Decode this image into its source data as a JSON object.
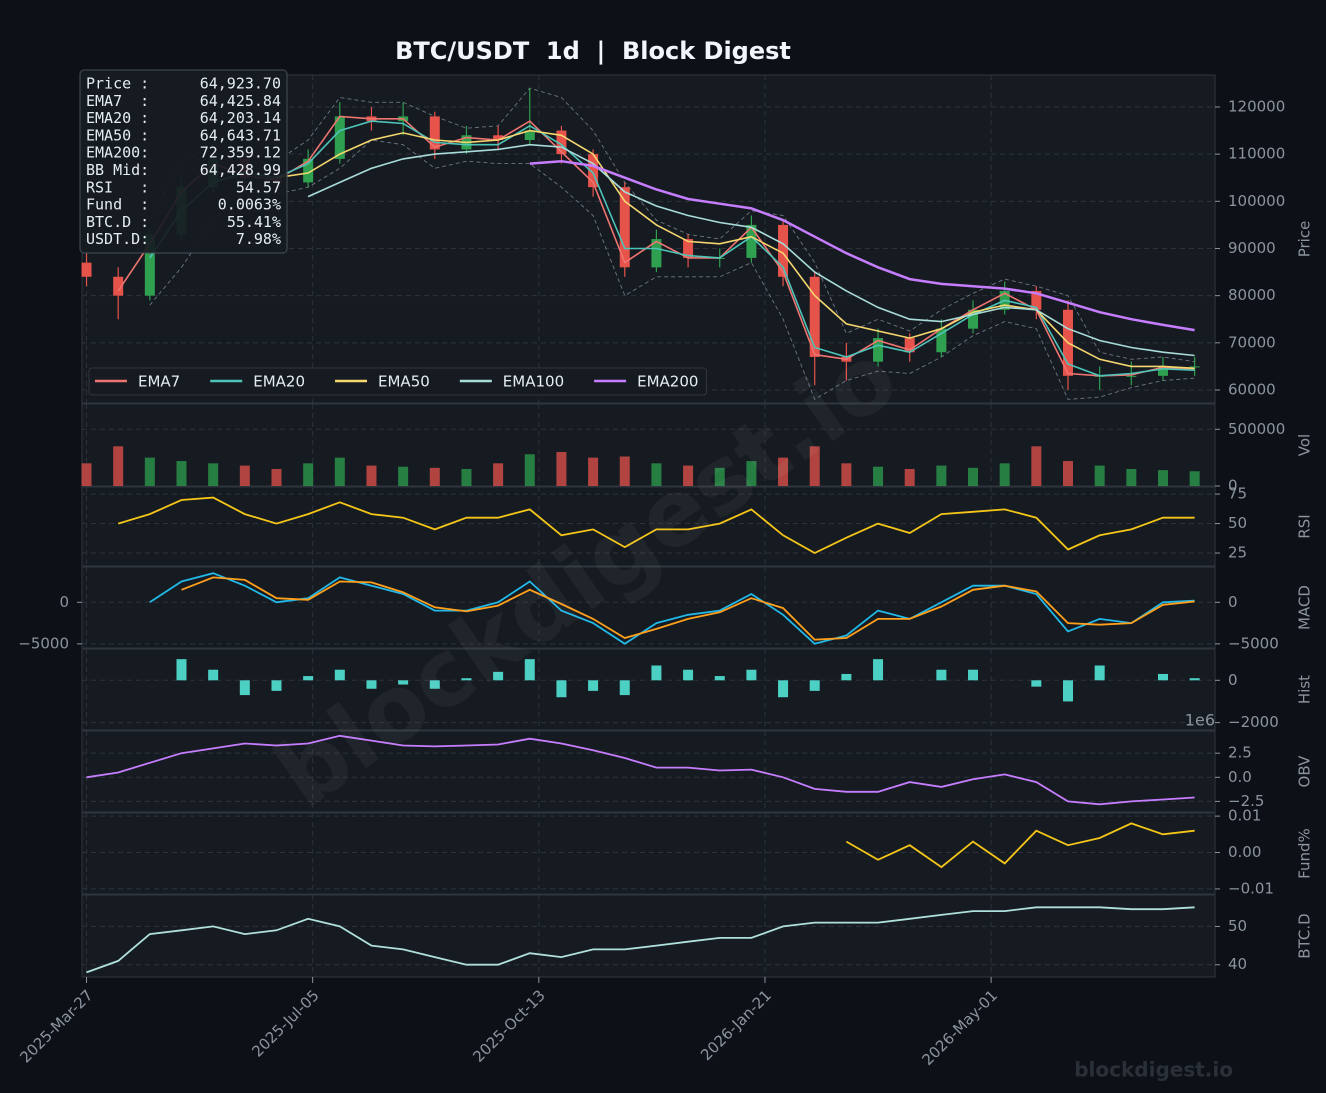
{
  "chart_data": {
    "type": "multi-panel",
    "title": "BTC/USDT  1d  |  Block Digest",
    "info_box": [
      [
        "Price :",
        "64,923.70"
      ],
      [
        "EMA7  :",
        "64,425.84"
      ],
      [
        "EMA20 :",
        "64,203.14"
      ],
      [
        "EMA50 :",
        "64,643.71"
      ],
      [
        "EMA200:",
        "72,359.12"
      ],
      [
        "BB Mid:",
        "64,428.99"
      ],
      [
        "RSI   :",
        "54.57"
      ],
      [
        "Fund  :",
        "0.0063%"
      ],
      [
        "BTC.D :",
        "55.41%"
      ],
      [
        "USDT.D:",
        "7.98%"
      ]
    ],
    "watermarks": [
      "blockdigest.io",
      "blockdigest.io"
    ],
    "x": [
      "2025-03-27",
      "2025-04-10",
      "2025-04-24",
      "2025-05-08",
      "2025-05-22",
      "2025-06-05",
      "2025-06-19",
      "2025-07-03",
      "2025-07-17",
      "2025-07-31",
      "2025-08-14",
      "2025-08-28",
      "2025-09-11",
      "2025-09-25",
      "2025-10-09",
      "2025-10-23",
      "2025-11-06",
      "2025-11-20",
      "2025-12-04",
      "2025-12-18",
      "2026-01-01",
      "2026-01-15",
      "2026-01-29",
      "2026-02-12",
      "2026-02-26",
      "2026-03-12",
      "2026-03-26",
      "2026-04-09",
      "2026-04-23",
      "2026-05-07",
      "2026-05-21",
      "2026-06-04",
      "2026-06-18",
      "2026-07-02",
      "2026-07-16",
      "2026-07-30"
    ],
    "xlim": [
      "2025-03-25",
      "2026-08-08"
    ],
    "xticks": [
      "2025-Mar-27",
      "2025-Jul-05",
      "2025-Oct-13",
      "2026-Jan-21",
      "2026-May-01"
    ],
    "grid": true,
    "panels": [
      {
        "type": "candlestick",
        "y_label": "Price",
        "ylim": [
          57240,
          126780
        ],
        "yticks": [
          60000,
          70000,
          80000,
          90000,
          100000,
          110000,
          120000
        ],
        "legend": "lower left",
        "candles": {
          "up_color": "#2ea04f",
          "down_color": "#e5534b",
          "open": [
            87000,
            84000,
            80000,
            93000,
            103000,
            109000,
            105000,
            104000,
            109000,
            118000,
            117000,
            118000,
            111000,
            114000,
            113000,
            115000,
            110000,
            103000,
            86000,
            92000,
            88000,
            88000,
            95000,
            84000,
            67000,
            66000,
            71000,
            68000,
            73000,
            77000,
            81000,
            77000,
            63000,
            63000,
            63000,
            65000
          ],
          "high": [
            89000,
            86000,
            94000,
            105000,
            111000,
            110000,
            107000,
            111000,
            121000,
            120000,
            121000,
            119000,
            116000,
            116000,
            124000,
            116000,
            111000,
            104000,
            94000,
            93000,
            90000,
            97000,
            96000,
            85000,
            70000,
            73000,
            72000,
            75000,
            79000,
            83000,
            82000,
            79000,
            65000,
            66000,
            67000,
            67000
          ],
          "low": [
            82000,
            75000,
            79000,
            92000,
            102000,
            103000,
            102000,
            103000,
            108000,
            115000,
            114000,
            109000,
            110000,
            111000,
            112000,
            108000,
            101000,
            84000,
            85000,
            86000,
            86000,
            87000,
            82000,
            61000,
            62000,
            65000,
            66000,
            67000,
            72000,
            76000,
            75000,
            60000,
            60000,
            61000,
            62000,
            63000
          ],
          "close": [
            84000,
            80000,
            93000,
            103000,
            109000,
            105000,
            104000,
            109000,
            118000,
            117000,
            118000,
            111000,
            114000,
            113000,
            115000,
            110000,
            103000,
            86000,
            92000,
            88000,
            88000,
            95000,
            84000,
            67000,
            66000,
            71000,
            68000,
            73000,
            77000,
            81000,
            77000,
            63000,
            63000,
            63000,
            65000,
            65000
          ]
        },
        "bollinger": {
          "color": "#6e7681",
          "upper": [
            null,
            null,
            96000,
            108000,
            112000,
            110000,
            108500,
            113000,
            122000,
            121000,
            121000,
            118000,
            115500,
            116000,
            124000,
            122000,
            115000,
            104000,
            96000,
            93000,
            92000,
            98000,
            97000,
            87000,
            72000,
            75000,
            72500,
            77000,
            80500,
            83500,
            82000,
            80000,
            68000,
            66500,
            67000,
            66000
          ],
          "lower": [
            null,
            null,
            78000,
            86000,
            96000,
            102000,
            101500,
            103000,
            107000,
            113000,
            112000,
            107000,
            108500,
            108000,
            108000,
            103000,
            97000,
            80000,
            84000,
            84000,
            84000,
            87000,
            75000,
            58000,
            62000,
            64000,
            63500,
            67000,
            71500,
            74500,
            73000,
            58000,
            58500,
            60500,
            62000,
            62500
          ]
        },
        "series": [
          {
            "name": "EMA7",
            "color": "#f07470",
            "values": [
              null,
              81000,
              91000,
              102000,
              108000,
              105500,
              104500,
              108500,
              118000,
              117500,
              117500,
              111500,
              113500,
              113000,
              117000,
              110500,
              104000,
              87000,
              91500,
              88000,
              88000,
              94500,
              85000,
              67500,
              66500,
              70500,
              68500,
              73000,
              77000,
              80500,
              77000,
              63500,
              63000,
              63200,
              64800,
              64400
            ]
          },
          {
            "name": "EMA20",
            "color": "#4dc4b8",
            "values": [
              null,
              null,
              88000,
              98000,
              104000,
              106000,
              105000,
              108000,
              115000,
              117000,
              116500,
              112500,
              112000,
              112000,
              116000,
              112000,
              106000,
              90000,
              90000,
              88500,
              88000,
              92500,
              86000,
              69000,
              67000,
              69500,
              68000,
              72000,
              76000,
              79000,
              77500,
              65500,
              63000,
              63500,
              64500,
              64200
            ]
          },
          {
            "name": "EMA50",
            "color": "#f5d76e",
            "values": [
              null,
              null,
              null,
              null,
              null,
              null,
              105000,
              106000,
              110000,
              113000,
              114500,
              113000,
              112500,
              113000,
              115000,
              114000,
              110000,
              100000,
              95000,
              91500,
              91000,
              92500,
              89000,
              80000,
              74000,
              72500,
              71000,
              73000,
              76500,
              78000,
              77000,
              70000,
              66500,
              65000,
              65000,
              64600
            ]
          },
          {
            "name": "EMA100",
            "color": "#a8dcd9",
            "values": [
              null,
              null,
              null,
              null,
              null,
              null,
              null,
              101000,
              104000,
              107000,
              109000,
              110000,
              110500,
              111000,
              112000,
              111500,
              108000,
              102000,
              99000,
              97000,
              95500,
              94500,
              91000,
              85000,
              81000,
              77500,
              75000,
              74500,
              76000,
              77500,
              77000,
              73000,
              70500,
              69000,
              68000,
              67300
            ]
          },
          {
            "name": "EMA200",
            "color": "#c77dff",
            "width": 2.5,
            "values": [
              null,
              null,
              null,
              null,
              null,
              null,
              null,
              null,
              null,
              null,
              null,
              null,
              null,
              null,
              108000,
              108500,
              107500,
              105000,
              102500,
              100500,
              99500,
              98500,
              96000,
              92500,
              89000,
              86000,
              83500,
              82500,
              82000,
              81500,
              80500,
              78500,
              76500,
              75000,
              73800,
              72700
            ]
          }
        ]
      },
      {
        "type": "bar",
        "y_label": "Vol",
        "ylim": [
          0,
          723000
        ],
        "yticks": [
          0,
          500000
        ],
        "color_by": "candles",
        "values": [
          200000,
          350000,
          250000,
          220000,
          200000,
          180000,
          150000,
          200000,
          250000,
          180000,
          170000,
          160000,
          150000,
          200000,
          280000,
          300000,
          250000,
          260000,
          200000,
          180000,
          160000,
          220000,
          250000,
          350000,
          200000,
          170000,
          150000,
          180000,
          160000,
          200000,
          350000,
          220000,
          180000,
          150000,
          140000,
          130000
        ]
      },
      {
        "type": "line",
        "y_label": "RSI",
        "ylim": [
          14,
          81
        ],
        "yticks": [
          25,
          50,
          75
        ],
        "series": [
          {
            "color": "#f5c518",
            "values": [
              null,
              50,
              58,
              70,
              72,
              58,
              50,
              58,
              68,
              58,
              55,
              45,
              55,
              55,
              62,
              40,
              45,
              30,
              45,
              45,
              50,
              62,
              40,
              25,
              38,
              50,
              42,
              58,
              60,
              62,
              55,
              28,
              40,
              45,
              55,
              55
            ]
          }
        ]
      },
      {
        "type": "line",
        "y_label": "MACD",
        "ylim": [
          -5500,
          4250
        ],
        "yticks": [
          {
            "value": -5000,
            "label": "−5000"
          },
          0
        ],
        "left_ticks": true,
        "series": [
          {
            "color": "#22b8e8",
            "values": [
              null,
              null,
              0,
              2500,
              3500,
              2000,
              0,
              500,
              3000,
              2000,
              1000,
              -1000,
              -1000,
              0,
              2500,
              -1000,
              -2500,
              -5000,
              -2500,
              -1500,
              -1000,
              1000,
              -1500,
              -5000,
              -4000,
              -1000,
              -2000,
              0,
              2000,
              2000,
              1000,
              -3500,
              -2000,
              -2500,
              0,
              200
            ]
          },
          {
            "color": "#ff9f1c",
            "values": [
              null,
              null,
              null,
              1500,
              3000,
              2700,
              500,
              300,
              2500,
              2400,
              1200,
              -600,
              -1100,
              -400,
              1500,
              -200,
              -2000,
              -4300,
              -3200,
              -2000,
              -1200,
              500,
              -700,
              -4500,
              -4300,
              -2000,
              -2000,
              -500,
              1500,
              2000,
              1300,
              -2500,
              -2700,
              -2500,
              -300,
              100
            ]
          }
        ]
      },
      {
        "type": "histogram",
        "y_label": "Hist",
        "ylim": [
          -2350,
          1480
        ],
        "yticks": [
          {
            "value": -2000,
            "label": "−2000"
          },
          0
        ],
        "color": "#4dd0c4",
        "values": [
          null,
          null,
          null,
          1000,
          500,
          -700,
          -500,
          200,
          500,
          -400,
          -200,
          -400,
          100,
          400,
          1000,
          -800,
          -500,
          -700,
          700,
          500,
          200,
          500,
          -800,
          -500,
          300,
          1000,
          0,
          500,
          500,
          0,
          -300,
          -1000,
          700,
          0,
          300,
          100
        ]
      },
      {
        "type": "line",
        "y_label": "OBV",
        "ylim": [
          -3.6,
          4.8
        ],
        "yticks": [
          {
            "value": -2.5,
            "label": "−2.5"
          },
          {
            "value": 0,
            "label": "0.0"
          },
          2.5
        ],
        "offset_label": "1e6",
        "series": [
          {
            "color": "#c77dff",
            "values": [
              0,
              0.5,
              1.5,
              2.5,
              3,
              3.5,
              3.3,
              3.5,
              4.3,
              3.8,
              3.3,
              3.2,
              3.3,
              3.4,
              4,
              3.5,
              2.8,
              2,
              1,
              1,
              0.7,
              0.8,
              0,
              -1.2,
              -1.5,
              -1.5,
              -0.5,
              -1,
              -0.2,
              0.3,
              -0.5,
              -2.5,
              -2.8,
              -2.5,
              -2.3,
              -2.1
            ]
          }
        ]
      },
      {
        "type": "line",
        "y_label": "Fund%",
        "ylim": [
          -0.0114,
          0.01086
        ],
        "yticks": [
          {
            "value": -0.01,
            "label": "−0.01"
          },
          {
            "value": 0,
            "label": "0.00"
          },
          0.01
        ],
        "series": [
          {
            "color": "#f5c518",
            "values": [
              null,
              null,
              null,
              null,
              null,
              null,
              null,
              null,
              null,
              null,
              null,
              null,
              null,
              null,
              null,
              null,
              null,
              null,
              null,
              null,
              null,
              null,
              null,
              null,
              0.003,
              -0.002,
              0.002,
              -0.004,
              0.003,
              -0.003,
              0.006,
              0.002,
              0.004,
              0.008,
              0.005,
              0.006
            ]
          }
        ]
      },
      {
        "type": "line",
        "y_label": "BTC.D",
        "ylim": [
          36.8,
          58.2
        ],
        "yticks": [
          40,
          50
        ],
        "series": [
          {
            "color": "#b0e0dc",
            "values": [
              38,
              41,
              48,
              49,
              50,
              48,
              49,
              52,
              50,
              45,
              44,
              42,
              40,
              40,
              43,
              42,
              44,
              44,
              45,
              46,
              47,
              47,
              50,
              51,
              51,
              51,
              52,
              53,
              54,
              54,
              55,
              55,
              55,
              54.5,
              54.5,
              55
            ]
          }
        ]
      }
    ]
  }
}
